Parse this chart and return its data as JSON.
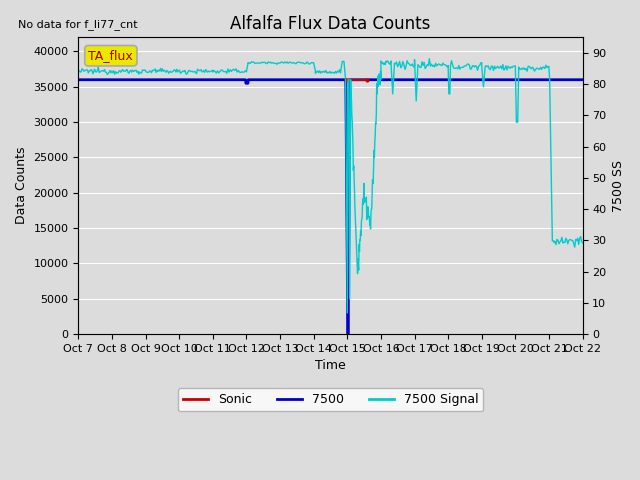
{
  "title": "Alfalfa Flux Data Counts",
  "no_data_text": "No data for f_li77_cnt",
  "xlabel": "Time",
  "ylabel_left": "Data Counts",
  "ylabel_right": "7500 SS",
  "xlim": [
    0,
    15
  ],
  "ylim_left": [
    0,
    42000
  ],
  "ylim_right": [
    0,
    95
  ],
  "x_tick_labels": [
    "Oct 7",
    "Oct 8",
    "Oct 9",
    "Oct 10",
    "Oct 11",
    "Oct 12",
    "Oct 13",
    "Oct 14",
    "Oct 15",
    "Oct 16",
    "Oct 17",
    "Oct 18",
    "Oct 19",
    "Oct 20",
    "Oct 21",
    "Oct 22"
  ],
  "background_color": "#dcdcdc",
  "legend_items": [
    "Sonic",
    "7500",
    "7500 Signal"
  ],
  "legend_colors": [
    "#cc0000",
    "#0000cc",
    "#00cccc"
  ],
  "ta_flux_box_facecolor": "#e8e800",
  "ta_flux_box_edgecolor": "#aaaaaa",
  "ta_flux_text": "TA_flux",
  "ta_flux_text_color": "#aa0000",
  "horizontal_line_y": 36000,
  "horizontal_line_color": "#0000cc",
  "sonic_line_color": "#cc0000",
  "flux_7500_color": "#0000cc",
  "signal_7500_color": "#00cccc",
  "title_fontsize": 12,
  "axis_label_fontsize": 9,
  "tick_fontsize": 8,
  "yticks_left": [
    0,
    5000,
    10000,
    15000,
    20000,
    25000,
    30000,
    35000,
    40000
  ],
  "yticks_right": [
    0,
    10,
    20,
    30,
    40,
    50,
    60,
    70,
    80,
    90
  ],
  "grid_color": "#ffffff",
  "grid_linewidth": 0.8
}
